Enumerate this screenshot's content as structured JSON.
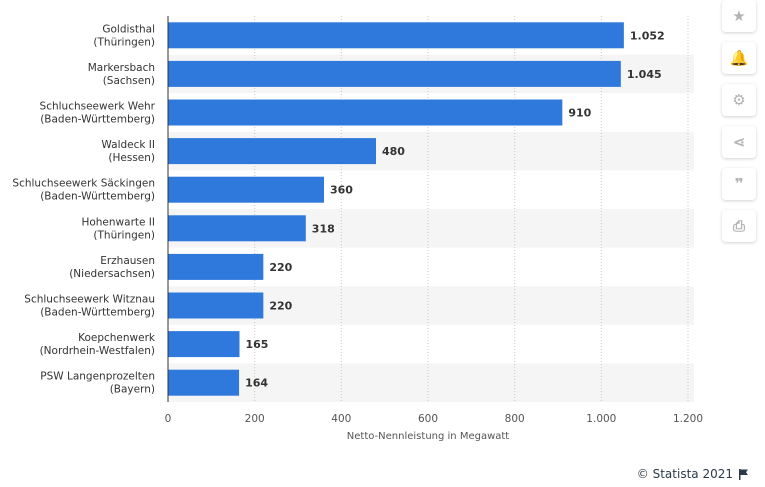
{
  "chart_data": {
    "type": "bar",
    "orientation": "horizontal",
    "categories": [
      [
        "Goldisthal",
        "(Thüringen)"
      ],
      [
        "Markersbach",
        "(Sachsen)"
      ],
      [
        "Schluchseewerk Wehr",
        "(Baden-Württemberg)"
      ],
      [
        "Waldeck II",
        "(Hessen)"
      ],
      [
        "Schluchseewerk Säckingen",
        "(Baden-Württemberg)"
      ],
      [
        "Hohenwarte II",
        "(Thüringen)"
      ],
      [
        "Erzhausen",
        "(Niedersachsen)"
      ],
      [
        "Schluchseewerk Witznau",
        "(Baden-Württemberg)"
      ],
      [
        "Koepchenwerk",
        "(Nordrhein-Westfalen)"
      ],
      [
        "PSW Langenprozelten",
        "(Bayern)"
      ]
    ],
    "values": [
      1052,
      1045,
      910,
      480,
      360,
      318,
      220,
      220,
      165,
      164
    ],
    "value_labels": [
      "1.052",
      "1.045",
      "910",
      "480",
      "360",
      "318",
      "220",
      "220",
      "165",
      "164"
    ],
    "xlabel": "Netto-Nennleistung in Megawatt",
    "xlim": [
      0,
      1200
    ],
    "ticks": [
      0,
      200,
      400,
      600,
      800,
      1000,
      1200
    ],
    "tick_labels": [
      "0",
      "200",
      "400",
      "600",
      "800",
      "1.000",
      "1.200"
    ],
    "grid": true,
    "bar_color": "#2f78dc",
    "stripe_color": "#f5f5f5"
  },
  "toolbar": {
    "buttons": [
      {
        "name": "star-icon",
        "glyph": "★"
      },
      {
        "name": "bell-icon",
        "glyph": "🔔"
      },
      {
        "name": "gear-icon",
        "glyph": "⚙"
      },
      {
        "name": "share-icon",
        "glyph": "⋖"
      },
      {
        "name": "quote-icon",
        "glyph": "❞"
      },
      {
        "name": "print-icon",
        "glyph": "⎙"
      }
    ]
  },
  "credit": {
    "text": "© Statista 2021",
    "icon": "flag-icon"
  }
}
